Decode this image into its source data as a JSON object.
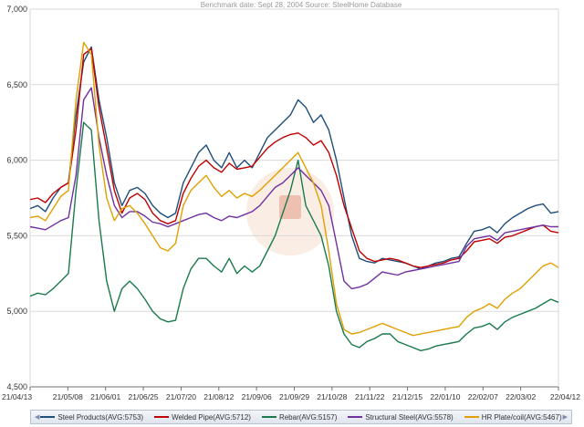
{
  "chart_data": {
    "type": "line",
    "subtitle": "Benchmark date: Sept 28, 2004 Source: SteelHome Database",
    "ylim": [
      4500,
      7000
    ],
    "y_ticks": [
      "4,500",
      "5,000",
      "5,500",
      "6,000",
      "6,500",
      "7,000"
    ],
    "y_tick_values": [
      4500,
      5000,
      5500,
      6000,
      6500,
      7000
    ],
    "x_tick_labels": [
      "21/04/13",
      "21/05/08",
      "21/06/01",
      "21/06/25",
      "21/07/20",
      "21/08/12",
      "21/09/06",
      "21/09/29",
      "21/10/28",
      "21/11/22",
      "21/12/15",
      "22/01/10",
      "22/02/07",
      "22/03/02",
      "22/04/12"
    ],
    "grid": true,
    "legend_position": "bottom",
    "series": [
      {
        "name": "Steel Products(AVG:5753)",
        "color": "#1f4e79",
        "values": [
          5680,
          5700,
          5660,
          5750,
          5820,
          5850,
          6300,
          6650,
          6750,
          6400,
          6150,
          5850,
          5700,
          5800,
          5820,
          5780,
          5700,
          5650,
          5620,
          5650,
          5850,
          5950,
          6050,
          6100,
          6000,
          5950,
          6050,
          5950,
          6000,
          5950,
          6050,
          6150,
          6200,
          6250,
          6300,
          6400,
          6350,
          6250,
          6300,
          6200,
          6000,
          5750,
          5500,
          5350,
          5330,
          5320,
          5350,
          5340,
          5330,
          5320,
          5300,
          5280,
          5300,
          5320,
          5330,
          5350,
          5360,
          5450,
          5530,
          5540,
          5560,
          5520,
          5580,
          5620,
          5650,
          5680,
          5700,
          5710,
          5650,
          5660
        ]
      },
      {
        "name": "Welded Pipe(AVG:5712)",
        "color": "#c00000",
        "values": [
          5740,
          5750,
          5720,
          5780,
          5820,
          5850,
          6200,
          6700,
          6740,
          6350,
          6080,
          5800,
          5650,
          5750,
          5780,
          5740,
          5650,
          5600,
          5580,
          5600,
          5780,
          5880,
          5960,
          6000,
          5950,
          5920,
          5980,
          5940,
          5950,
          5960,
          6020,
          6080,
          6120,
          6150,
          6170,
          6180,
          6150,
          6100,
          6130,
          6050,
          5900,
          5700,
          5550,
          5400,
          5350,
          5330,
          5340,
          5350,
          5340,
          5320,
          5300,
          5290,
          5300,
          5310,
          5320,
          5340,
          5350,
          5400,
          5460,
          5470,
          5480,
          5450,
          5490,
          5500,
          5520,
          5540,
          5560,
          5570,
          5530,
          5520
        ]
      },
      {
        "name": "Rebar(AVG:5157)",
        "color": "#1a7a4c",
        "values": [
          5100,
          5120,
          5110,
          5150,
          5200,
          5250,
          5800,
          6250,
          6200,
          5600,
          5200,
          5000,
          5150,
          5200,
          5150,
          5080,
          5000,
          4950,
          4930,
          4940,
          5150,
          5280,
          5350,
          5350,
          5300,
          5260,
          5350,
          5250,
          5300,
          5260,
          5300,
          5400,
          5500,
          5650,
          5800,
          6000,
          5700,
          5600,
          5500,
          5300,
          5000,
          4850,
          4780,
          4760,
          4800,
          4820,
          4850,
          4850,
          4800,
          4780,
          4760,
          4740,
          4750,
          4770,
          4780,
          4790,
          4800,
          4850,
          4890,
          4900,
          4920,
          4880,
          4930,
          4960,
          4980,
          5000,
          5020,
          5050,
          5080,
          5060
        ]
      },
      {
        "name": "Structural Steel(AVG:5578)",
        "color": "#7030a0",
        "values": [
          5560,
          5550,
          5540,
          5570,
          5600,
          5620,
          5900,
          6400,
          6480,
          6150,
          5900,
          5700,
          5620,
          5660,
          5660,
          5630,
          5590,
          5580,
          5560,
          5580,
          5600,
          5620,
          5640,
          5650,
          5620,
          5600,
          5630,
          5620,
          5640,
          5660,
          5700,
          5760,
          5820,
          5850,
          5900,
          5950,
          5900,
          5850,
          5800,
          5700,
          5450,
          5200,
          5150,
          5160,
          5180,
          5220,
          5260,
          5250,
          5240,
          5260,
          5270,
          5280,
          5290,
          5300,
          5310,
          5320,
          5330,
          5430,
          5480,
          5490,
          5500,
          5470,
          5520,
          5530,
          5540,
          5550,
          5560,
          5570,
          5560,
          5560
        ]
      },
      {
        "name": "HR Plate/coil(AVG:5467)",
        "color": "#e0a000",
        "values": [
          5620,
          5630,
          5600,
          5680,
          5760,
          5800,
          6400,
          6780,
          6700,
          6100,
          5750,
          5600,
          5680,
          5700,
          5650,
          5580,
          5500,
          5420,
          5400,
          5450,
          5700,
          5800,
          5850,
          5900,
          5820,
          5760,
          5800,
          5750,
          5780,
          5760,
          5800,
          5850,
          5900,
          5950,
          6000,
          6050,
          5950,
          5850,
          5700,
          5400,
          5050,
          4880,
          4850,
          4860,
          4880,
          4900,
          4920,
          4900,
          4880,
          4860,
          4840,
          4850,
          4860,
          4870,
          4880,
          4890,
          4900,
          4960,
          5000,
          5020,
          5050,
          5020,
          5080,
          5120,
          5150,
          5200,
          5250,
          5300,
          5320,
          5290
        ]
      }
    ]
  }
}
